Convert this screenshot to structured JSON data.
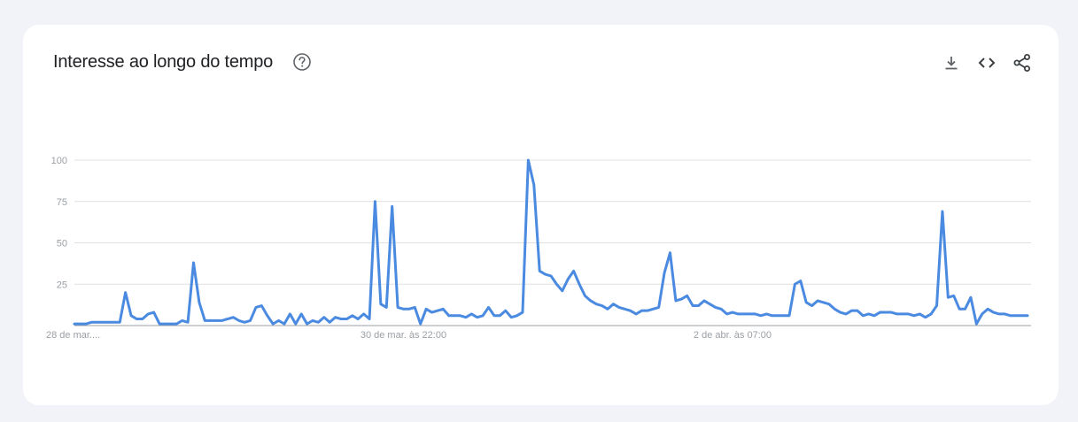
{
  "header": {
    "title": "Interesse ao longo do tempo"
  },
  "icons": {
    "help": "help-circle-icon",
    "download": "download-icon",
    "embed": "embed-code-icon",
    "share": "share-icon"
  },
  "colors": {
    "line": "#4a8ae0",
    "grid": "#e0e0e0",
    "axis": "#9aa0a6",
    "tick_text": "#9aa0a6"
  },
  "chart_data": {
    "type": "line",
    "title": "Interesse ao longo do tempo",
    "xlabel": "",
    "ylabel": "",
    "ylim": [
      0,
      100
    ],
    "yticks": [
      25,
      50,
      75,
      100
    ],
    "xtick_labels": [
      {
        "index": 0,
        "label": "28 de mar...."
      },
      {
        "index": 58,
        "label": "30 de mar. às 22:00"
      },
      {
        "index": 116,
        "label": "2 de abr. às 07:00"
      }
    ],
    "grid": true,
    "series": [
      {
        "values": [
          1,
          1,
          1,
          2,
          2,
          2,
          2,
          2,
          2,
          20,
          6,
          4,
          4,
          7,
          8,
          1,
          1,
          1,
          1,
          3,
          2,
          38,
          14,
          3,
          3,
          3,
          3,
          4,
          5,
          3,
          2,
          3,
          11,
          12,
          6,
          1,
          3,
          1,
          7,
          1,
          7,
          1,
          3,
          2,
          5,
          2,
          5,
          4,
          4,
          6,
          4,
          7,
          4,
          75,
          13,
          11,
          72,
          11,
          10,
          10,
          11,
          1,
          10,
          8,
          9,
          10,
          6,
          6,
          6,
          5,
          7,
          5,
          6,
          11,
          6,
          6,
          9,
          5,
          6,
          8,
          100,
          85,
          33,
          31,
          30,
          25,
          21,
          28,
          33,
          25,
          18,
          15,
          13,
          12,
          10,
          13,
          11,
          10,
          9,
          7,
          9,
          9,
          10,
          11,
          32,
          44,
          15,
          16,
          18,
          12,
          12,
          15,
          13,
          11,
          10,
          7,
          8,
          7,
          7,
          7,
          7,
          6,
          7,
          6,
          6,
          6,
          6,
          25,
          27,
          14,
          12,
          15,
          14,
          13,
          10,
          8,
          7,
          9,
          9,
          6,
          7,
          6,
          8,
          8,
          8,
          7,
          7,
          7,
          6,
          7,
          5,
          7,
          12,
          69,
          17,
          18,
          10,
          10,
          17,
          1,
          7,
          10,
          8,
          7,
          7,
          6,
          6,
          6,
          6
        ]
      }
    ]
  }
}
